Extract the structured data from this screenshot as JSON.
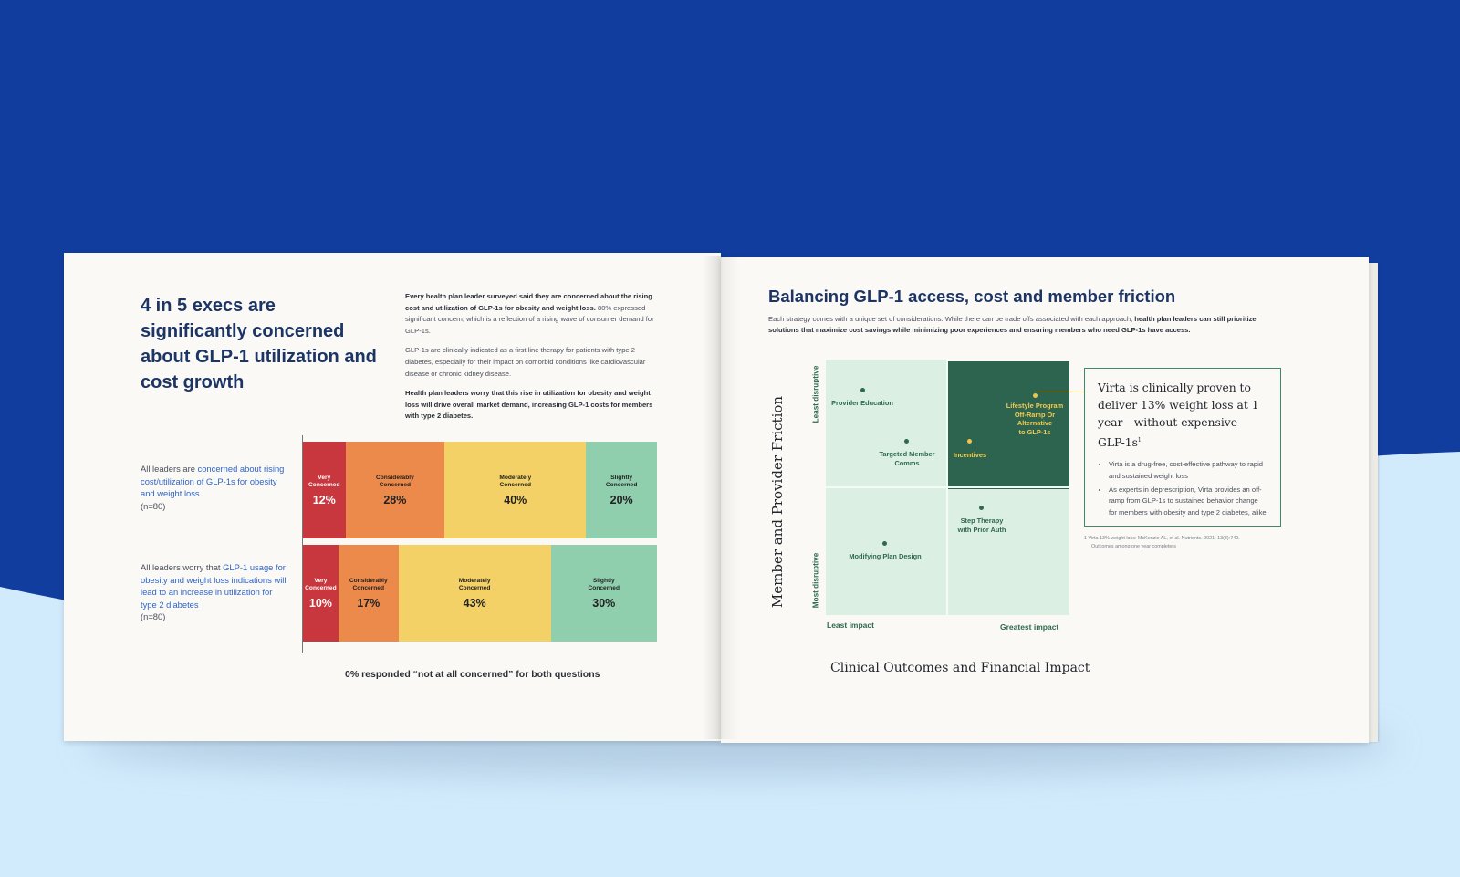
{
  "colors": {
    "background_top": "#113d9f",
    "background_bottom": "#d2ebfc",
    "title_navy": "#1c3564",
    "link_blue": "#2f64c6",
    "quadrant_light": "#dcefe3",
    "quadrant_dark": "#2d6450",
    "accent_gold": "#f0c44a"
  },
  "left_page": {
    "title": "4 in 5 execs are significantly concerned about GLP-1 utilization and cost growth",
    "body": {
      "p1_bold": "Every health plan leader surveyed said they are concerned about the rising cost and utilization of GLP-1s for obesity and weight loss.",
      "p1_rest": " 80% expressed significant concern, which is a reflection of a rising wave of consumer demand for GLP-1s.",
      "p2": "GLP-1s are clinically indicated as a first line therapy for patients with type 2 diabetes, especially for their impact on comorbid conditions like cardiovascular disease or chronic kidney disease.",
      "p3_bold": "Health plan leaders worry that this rise in utilization for obesity and weight loss will drive overall market demand, increasing GLP-1 costs for members with type 2 diabetes."
    },
    "question_1": {
      "prefix": "All leaders are ",
      "highlight": "concerned about rising cost/utilization of GLP-1s for obesity and weight loss",
      "n": "(n=80)"
    },
    "question_2": {
      "prefix": "All leaders worry that ",
      "highlight": "GLP-1 usage for obesity and weight loss indications will lead to an increase in utilization for type 2 diabetes",
      "n": "(n=80)"
    },
    "footnote": "0% responded “not at all concerned” for both questions"
  },
  "chart_data": [
    {
      "type": "bar",
      "title": "",
      "categories": [
        "Very Concerned",
        "Considerably Concerned",
        "Moderately Concerned",
        "Slightly Concerned"
      ],
      "series": [
        {
          "values": [
            12,
            28,
            40,
            20
          ],
          "labels": [
            "12%",
            "28%",
            "40%",
            "20%"
          ]
        },
        {
          "values": [
            10,
            17,
            43,
            30
          ],
          "labels": [
            "10%",
            "17%",
            "43%",
            "30%"
          ]
        }
      ],
      "stacked": true,
      "unit": "%",
      "colors": [
        "#c8373d",
        "#ec8a4b",
        "#f3d166",
        "#8fcfae"
      ]
    },
    {
      "type": "scatter",
      "title": "Balancing GLP-1 access, cost and member friction",
      "xlabel": "Clinical Outcomes and Financial Impact",
      "ylabel": "Member and Provider Friction",
      "x_tick_labels": [
        "Least impact",
        "Greatest impact"
      ],
      "y_tick_labels": [
        "Least disruptive",
        "Most disruptive"
      ],
      "grid": "2x2 quadrants",
      "points": [
        {
          "label": "Provider Education",
          "x": 0.15,
          "y": 0.88,
          "highlight": false
        },
        {
          "label": "Targeted Member Comms",
          "x": 0.33,
          "y": 0.68,
          "highlight": false
        },
        {
          "label": "Lifestyle Program Off-Ramp Or Alternative to GLP-1s",
          "x": 0.86,
          "y": 0.86,
          "highlight": true
        },
        {
          "label": "Incentives",
          "x": 0.59,
          "y": 0.68,
          "highlight": true
        },
        {
          "label": "Step Therapy with Prior Auth",
          "x": 0.64,
          "y": 0.42,
          "highlight": false
        },
        {
          "label": "Modifying Plan Design",
          "x": 0.24,
          "y": 0.28,
          "highlight": false
        }
      ]
    }
  ],
  "right_page": {
    "title": "Balancing GLP-1 access, cost and member friction",
    "desc_plain": "Each strategy comes with a unique set of considerations. While there can be trade offs associated with each approach, ",
    "desc_bold": "health plan leaders can still prioritize solutions that maximize cost savings while minimizing poor experiences and ensuring members who need GLP-1s have access.",
    "y_axis_title": "Member and Provider Friction",
    "y_top_label": "Least disruptive",
    "y_bottom_label": "Most disruptive",
    "x_left_label": "Least impact",
    "x_right_label": "Greatest impact",
    "x_axis_title": "Clinical Outcomes and Financial Impact",
    "labels": {
      "provider_education": "Provider Education",
      "targeted_comms_1": "Targeted Member",
      "targeted_comms_2": "Comms",
      "lifestyle_1": "Lifestyle Program",
      "lifestyle_2": "Off-Ramp Or",
      "lifestyle_3": "Alternative",
      "lifestyle_4": "to GLP-1s",
      "incentives": "Incentives",
      "step_1": "Step Therapy",
      "step_2": "with Prior Auth",
      "modifying": "Modifying Plan Design"
    },
    "callout": {
      "headline": "Virta is clinically proven to deliver 13% weight loss at 1 year—without expensive GLP-1s",
      "superscript": "1",
      "bullet_1": "Virta is a drug-free, cost-effective pathway to rapid and sustained weight loss",
      "bullet_2": "As experts in deprescription, Virta provides an off-ramp from GLP-1s to sustained behavior change for members with obesity and type 2 diabetes, alike"
    },
    "reference_1": "1   Virta 13% weight loss: McKenzie AL, et al. Nutrients. 2021; 13(3):749.",
    "reference_2": "Outcomes among one year completers"
  }
}
